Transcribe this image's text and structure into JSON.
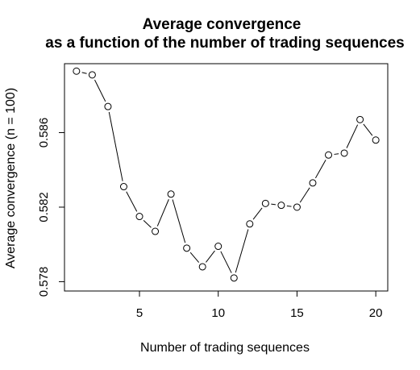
{
  "chart_data": {
    "type": "line",
    "title_line1": "Average convergence",
    "title_line2": "as a function of the number of trading sequences",
    "xlabel": "Number of trading sequences",
    "ylabel": "Average convergence (n = 100)",
    "xlim": [
      0.24,
      20.76
    ],
    "ylim": [
      0.5775,
      0.5897
    ],
    "x_ticks": [
      5,
      10,
      15,
      20
    ],
    "x_tick_labels": [
      "5",
      "10",
      "15",
      "20"
    ],
    "y_ticks": [
      0.578,
      0.582,
      0.586
    ],
    "y_tick_labels": [
      "0.578",
      "0.582",
      "0.586"
    ],
    "grid": false,
    "plot_style": "b",
    "x": [
      1,
      2,
      3,
      4,
      5,
      6,
      7,
      8,
      9,
      10,
      11,
      12,
      13,
      14,
      15,
      16,
      17,
      18,
      19,
      20
    ],
    "y": [
      0.5893,
      0.5891,
      0.5874,
      0.5831,
      0.5815,
      0.5807,
      0.5827,
      0.5798,
      0.5788,
      0.5799,
      0.5782,
      0.5811,
      0.5822,
      0.5821,
      0.582,
      0.5833,
      0.5848,
      0.5849,
      0.5867,
      0.5856
    ]
  }
}
